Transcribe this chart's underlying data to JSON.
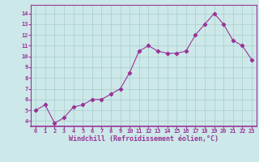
{
  "x": [
    0,
    1,
    2,
    3,
    4,
    5,
    6,
    7,
    8,
    9,
    10,
    11,
    12,
    13,
    14,
    15,
    16,
    17,
    18,
    19,
    20,
    21,
    22,
    23
  ],
  "y": [
    5.0,
    5.5,
    3.8,
    4.3,
    5.3,
    5.5,
    6.0,
    6.0,
    6.5,
    7.0,
    8.5,
    10.5,
    11.0,
    10.5,
    10.3,
    10.3,
    10.5,
    12.0,
    13.0,
    14.0,
    13.0,
    11.5,
    11.0,
    9.7
  ],
  "line_color": "#993399",
  "marker": "D",
  "marker_size": 2.2,
  "bg_color": "#cce8e8",
  "grid_color": "#aacccc",
  "xlabel": "Windchill (Refroidissement éolien,°C)",
  "yticks": [
    4,
    5,
    6,
    7,
    8,
    9,
    10,
    11,
    12,
    13,
    14
  ],
  "xlim": [
    -0.5,
    23.5
  ],
  "ylim": [
    3.5,
    14.8
  ],
  "tick_color": "#993399",
  "label_color": "#993399",
  "spine_color": "#993399"
}
